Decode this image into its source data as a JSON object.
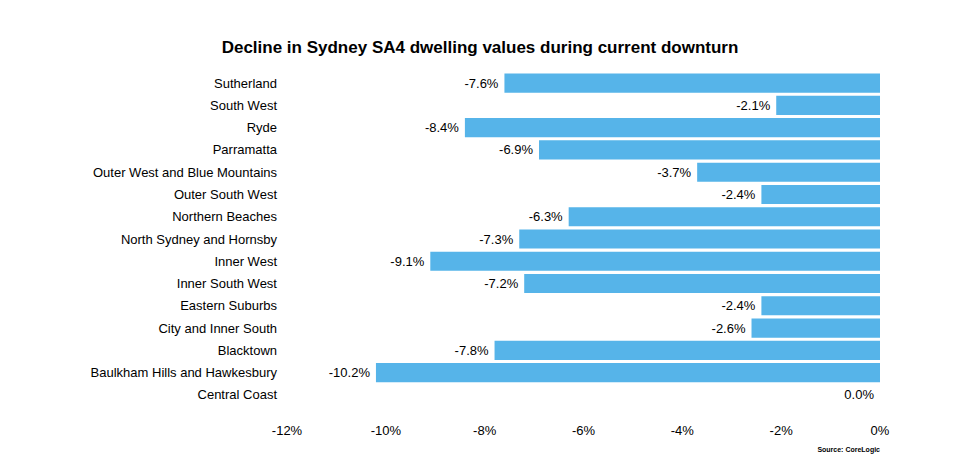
{
  "chart_data": {
    "type": "bar",
    "title": "Decline in Sydney SA4 dwelling values during current downturn",
    "orientation": "horizontal",
    "categories": [
      "Sutherland",
      "South West",
      "Ryde",
      "Parramatta",
      "Outer West and Blue Mountains",
      "Outer South West",
      "Northern Beaches",
      "North Sydney and Hornsby",
      "Inner West",
      "Inner South West",
      "Eastern Suburbs",
      "City and Inner South",
      "Blacktown",
      "Baulkham Hills and Hawkesbury",
      "Central Coast"
    ],
    "values": [
      -7.6,
      -2.1,
      -8.4,
      -6.9,
      -3.7,
      -2.4,
      -6.3,
      -7.3,
      -9.1,
      -7.2,
      -2.4,
      -2.6,
      -7.8,
      -10.2,
      0.0
    ],
    "value_labels": [
      "-7.6%",
      "-2.1%",
      "-8.4%",
      "-6.9%",
      "-3.7%",
      "-2.4%",
      "-6.3%",
      "-7.3%",
      "-9.1%",
      "-7.2%",
      "-2.4%",
      "-2.6%",
      "-7.8%",
      "-10.2%",
      "0.0%"
    ],
    "color": "#56b4e9",
    "xlim": [
      -12,
      0
    ],
    "xticks": [
      {
        "value": -12,
        "label": "-12%"
      },
      {
        "value": -10,
        "label": "-10%"
      },
      {
        "value": -8,
        "label": "-8%"
      },
      {
        "value": -6,
        "label": "-6%"
      },
      {
        "value": -4,
        "label": "-4%"
      },
      {
        "value": -2,
        "label": "-2%"
      },
      {
        "value": 0,
        "label": "0%"
      }
    ],
    "grid": false,
    "data_labels": true,
    "annotations": [
      "Source: CoreLogic"
    ]
  }
}
